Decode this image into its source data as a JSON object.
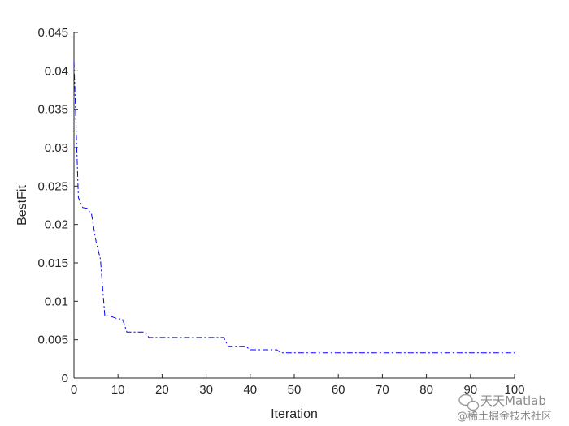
{
  "chart_data": {
    "type": "line",
    "title": "",
    "xlabel": "Iteration",
    "ylabel": "BestFit",
    "xlim": [
      0,
      100
    ],
    "ylim": [
      0,
      0.045
    ],
    "grid": false,
    "x_ticks": [
      "0",
      "10",
      "20",
      "30",
      "40",
      "50",
      "60",
      "70",
      "80",
      "90",
      "100"
    ],
    "y_ticks": [
      "0",
      "0.005",
      "0.01",
      "0.015",
      "0.02",
      "0.025",
      "0.03",
      "0.035",
      "0.04",
      "0.045"
    ],
    "series": [
      {
        "color": "#0000ff",
        "line_style": "dash-dot",
        "points": [
          [
            0,
            0.0412
          ],
          [
            1,
            0.0235
          ],
          [
            2,
            0.0222
          ],
          [
            3,
            0.0221
          ],
          [
            4,
            0.0213
          ],
          [
            5,
            0.0178
          ],
          [
            6,
            0.0155
          ],
          [
            7,
            0.0081
          ],
          [
            8,
            0.0081
          ],
          [
            9,
            0.0079
          ],
          [
            10,
            0.0077
          ],
          [
            11,
            0.0077
          ],
          [
            12,
            0.006
          ],
          [
            13,
            0.006
          ],
          [
            14,
            0.006
          ],
          [
            15,
            0.006
          ],
          [
            16,
            0.006
          ],
          [
            17,
            0.0053
          ],
          [
            18,
            0.0053
          ],
          [
            25,
            0.0053
          ],
          [
            30,
            0.0053
          ],
          [
            34,
            0.0053
          ],
          [
            35,
            0.0041
          ],
          [
            38,
            0.0041
          ],
          [
            39,
            0.0041
          ],
          [
            40,
            0.0037
          ],
          [
            45,
            0.0037
          ],
          [
            46,
            0.0037
          ],
          [
            47,
            0.0033
          ],
          [
            50,
            0.0033
          ],
          [
            60,
            0.0033
          ],
          [
            70,
            0.0033
          ],
          [
            80,
            0.0033
          ],
          [
            90,
            0.0033
          ],
          [
            100,
            0.0033
          ]
        ]
      }
    ]
  },
  "watermark": {
    "line1": "天天Matlab",
    "line2": "@稀土掘金技术社区"
  }
}
